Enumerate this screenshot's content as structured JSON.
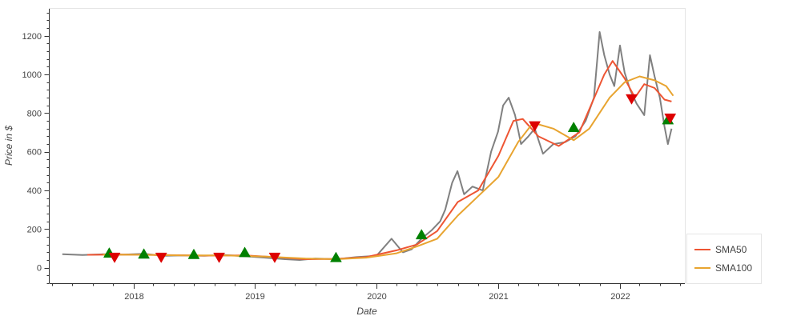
{
  "chart_data": {
    "type": "line",
    "xlabel": "Date",
    "ylabel": "Price in $",
    "x_ticks": [
      "2018",
      "2019",
      "2020",
      "2021",
      "2022"
    ],
    "y_ticks": [
      0,
      200,
      400,
      600,
      800,
      1000,
      1200
    ],
    "xlim": [
      "2017-04-24",
      "2022-07-15"
    ],
    "ylim": [
      -80,
      1340
    ],
    "grid": false,
    "legend_position": "bottom-right",
    "series": [
      {
        "name": "",
        "color": "#808080",
        "points": [
          [
            "2017-06-01",
            70
          ],
          [
            "2017-08-01",
            66
          ],
          [
            "2017-10-01",
            70
          ],
          [
            "2017-12-01",
            68
          ],
          [
            "2018-02-01",
            72
          ],
          [
            "2018-04-01",
            62
          ],
          [
            "2018-06-01",
            64
          ],
          [
            "2018-08-01",
            62
          ],
          [
            "2018-10-01",
            66
          ],
          [
            "2018-12-01",
            60
          ],
          [
            "2019-02-01",
            52
          ],
          [
            "2019-04-01",
            44
          ],
          [
            "2019-05-15",
            40
          ],
          [
            "2019-07-01",
            48
          ],
          [
            "2019-09-01",
            44
          ],
          [
            "2019-11-01",
            55
          ],
          [
            "2020-01-01",
            62
          ],
          [
            "2020-02-15",
            150
          ],
          [
            "2020-03-20",
            80
          ],
          [
            "2020-04-15",
            95
          ],
          [
            "2020-05-15",
            150
          ],
          [
            "2020-06-15",
            195
          ],
          [
            "2020-07-10",
            240
          ],
          [
            "2020-07-25",
            300
          ],
          [
            "2020-08-15",
            440
          ],
          [
            "2020-08-31",
            500
          ],
          [
            "2020-09-20",
            380
          ],
          [
            "2020-10-15",
            420
          ],
          [
            "2020-11-15",
            400
          ],
          [
            "2020-12-10",
            600
          ],
          [
            "2020-12-31",
            705
          ],
          [
            "2021-01-15",
            840
          ],
          [
            "2021-02-01",
            880
          ],
          [
            "2021-02-20",
            790
          ],
          [
            "2021-03-10",
            640
          ],
          [
            "2021-04-01",
            680
          ],
          [
            "2021-04-20",
            720
          ],
          [
            "2021-05-15",
            590
          ],
          [
            "2021-06-15",
            640
          ],
          [
            "2021-07-20",
            650
          ],
          [
            "2021-08-20",
            680
          ],
          [
            "2021-09-20",
            760
          ],
          [
            "2021-10-15",
            880
          ],
          [
            "2021-11-01",
            1220
          ],
          [
            "2021-11-15",
            1100
          ],
          [
            "2021-12-01",
            1000
          ],
          [
            "2021-12-15",
            940
          ],
          [
            "2022-01-01",
            1150
          ],
          [
            "2022-01-15",
            1010
          ],
          [
            "2022-02-01",
            920
          ],
          [
            "2022-02-20",
            850
          ],
          [
            "2022-03-15",
            790
          ],
          [
            "2022-04-01",
            1100
          ],
          [
            "2022-04-15",
            990
          ],
          [
            "2022-05-01",
            880
          ],
          [
            "2022-05-15",
            730
          ],
          [
            "2022-05-25",
            640
          ],
          [
            "2022-06-05",
            720
          ]
        ]
      },
      {
        "name": "SMA50",
        "color": "#ee5533",
        "points": [
          [
            "2017-08-15",
            67
          ],
          [
            "2017-12-01",
            68
          ],
          [
            "2018-04-01",
            66
          ],
          [
            "2018-08-01",
            63
          ],
          [
            "2018-12-01",
            64
          ],
          [
            "2019-03-01",
            55
          ],
          [
            "2019-06-01",
            44
          ],
          [
            "2019-09-01",
            46
          ],
          [
            "2019-12-01",
            55
          ],
          [
            "2020-03-01",
            90
          ],
          [
            "2020-05-01",
            120
          ],
          [
            "2020-07-01",
            190
          ],
          [
            "2020-09-01",
            340
          ],
          [
            "2020-11-01",
            400
          ],
          [
            "2021-01-01",
            580
          ],
          [
            "2021-02-15",
            760
          ],
          [
            "2021-03-15",
            770
          ],
          [
            "2021-05-01",
            680
          ],
          [
            "2021-07-01",
            630
          ],
          [
            "2021-09-01",
            700
          ],
          [
            "2021-11-15",
            1000
          ],
          [
            "2021-12-10",
            1070
          ],
          [
            "2022-01-15",
            980
          ],
          [
            "2022-02-15",
            880
          ],
          [
            "2022-03-15",
            950
          ],
          [
            "2022-04-15",
            930
          ],
          [
            "2022-05-15",
            870
          ],
          [
            "2022-06-05",
            860
          ]
        ]
      },
      {
        "name": "SMA100",
        "color": "#e8a430",
        "points": [
          [
            "2017-10-01",
            68
          ],
          [
            "2018-02-01",
            67
          ],
          [
            "2018-06-01",
            64
          ],
          [
            "2018-10-01",
            64
          ],
          [
            "2019-02-01",
            58
          ],
          [
            "2019-06-01",
            48
          ],
          [
            "2019-09-01",
            44
          ],
          [
            "2019-12-01",
            52
          ],
          [
            "2020-03-01",
            75
          ],
          [
            "2020-05-01",
            110
          ],
          [
            "2020-07-01",
            150
          ],
          [
            "2020-09-01",
            270
          ],
          [
            "2020-11-01",
            370
          ],
          [
            "2021-01-01",
            470
          ],
          [
            "2021-03-01",
            650
          ],
          [
            "2021-04-15",
            750
          ],
          [
            "2021-06-15",
            720
          ],
          [
            "2021-08-15",
            660
          ],
          [
            "2021-10-01",
            720
          ],
          [
            "2021-12-01",
            880
          ],
          [
            "2022-01-15",
            960
          ],
          [
            "2022-03-01",
            990
          ],
          [
            "2022-04-15",
            970
          ],
          [
            "2022-05-20",
            940
          ],
          [
            "2022-06-10",
            890
          ]
        ]
      }
    ],
    "buy_signals": {
      "color": "#008000",
      "points": [
        [
          "2017-10-20",
          75
        ],
        [
          "2018-02-01",
          70
        ],
        [
          "2018-07-01",
          68
        ],
        [
          "2018-12-01",
          78
        ],
        [
          "2019-09-01",
          52
        ],
        [
          "2020-05-15",
          170
        ],
        [
          "2021-08-15",
          725
        ],
        [
          "2022-05-25",
          765
        ]
      ]
    },
    "sell_signals": {
      "color": "#dd0000",
      "points": [
        [
          "2017-11-05",
          55
        ],
        [
          "2018-03-25",
          55
        ],
        [
          "2018-09-15",
          55
        ],
        [
          "2019-03-01",
          55
        ],
        [
          "2021-04-20",
          735
        ],
        [
          "2022-02-05",
          875
        ],
        [
          "2022-06-01",
          775
        ]
      ]
    }
  }
}
